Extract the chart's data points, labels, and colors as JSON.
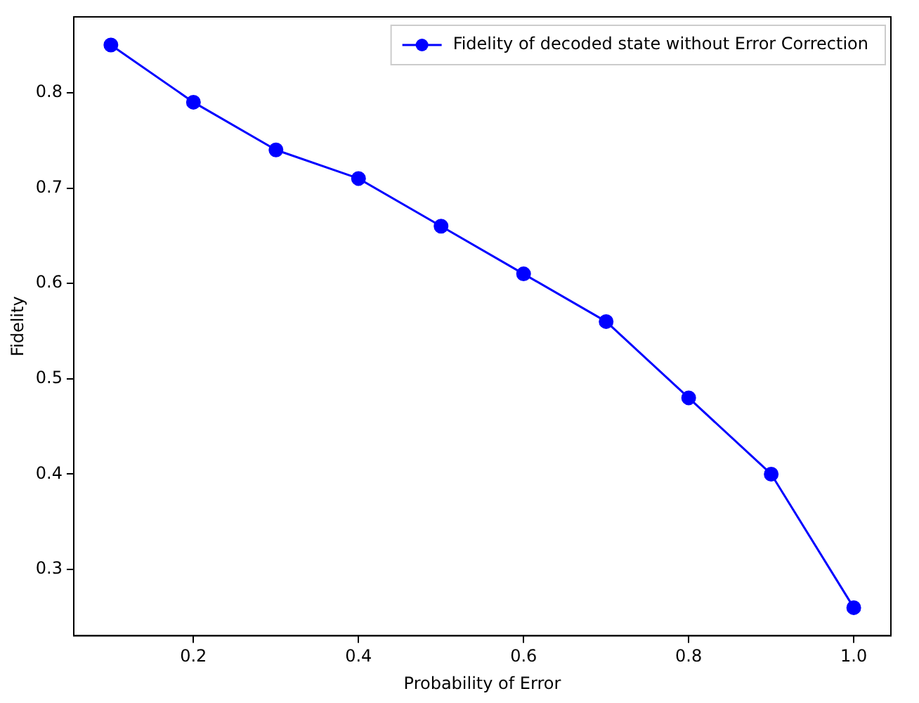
{
  "chart_data": {
    "type": "line",
    "xlabel": "Probability of Error",
    "ylabel": "Fidelity",
    "x": [
      0.1,
      0.2,
      0.3,
      0.4,
      0.5,
      0.6,
      0.7,
      0.8,
      0.9,
      1.0
    ],
    "series": [
      {
        "name": "Fidelity of decoded state without Error Correction",
        "color": "#0000ff",
        "values": [
          0.85,
          0.79,
          0.74,
          0.71,
          0.66,
          0.61,
          0.56,
          0.48,
          0.4,
          0.26
        ]
      }
    ],
    "xlim": [
      0.055,
      1.045
    ],
    "xticks": [
      {
        "value": 0.2,
        "label": "0.2"
      },
      {
        "value": 0.4,
        "label": "0.4"
      },
      {
        "value": 0.6,
        "label": "0.6"
      },
      {
        "value": 0.8,
        "label": "0.8"
      },
      {
        "value": 1.0,
        "label": "1.0"
      }
    ],
    "ylim": [
      0.2305,
      0.8795
    ],
    "yticks": [
      0.3,
      0.4,
      0.5,
      0.6,
      0.7,
      0.8
    ],
    "grid": false,
    "legend": "top right",
    "marker": "circle",
    "line_style": "solid"
  }
}
